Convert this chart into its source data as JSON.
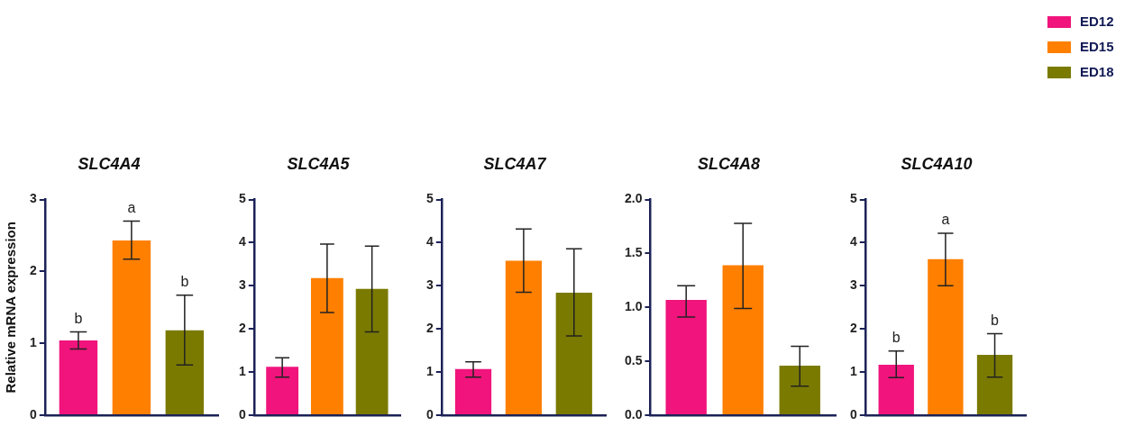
{
  "chart_data": [
    {
      "type": "bar",
      "title": "SLC4A4",
      "ylabel": "Relative mRNA expression",
      "categories": [
        null
      ],
      "ylim": [
        0,
        3
      ],
      "yticks": [
        0,
        1,
        2,
        3
      ],
      "grid": false,
      "annotations": [
        "b",
        "a",
        "b"
      ],
      "series": [
        {
          "color": "#f0147c",
          "values": [
            1.04
          ],
          "errors": [
            [
              0.92,
              1.16
            ]
          ]
        },
        {
          "color": "#ff7f00",
          "values": [
            2.43
          ],
          "errors": [
            [
              2.17,
              2.7
            ]
          ]
        },
        {
          "color": "#7a7a00",
          "values": [
            1.18
          ],
          "errors": [
            [
              0.7,
              1.67
            ]
          ]
        }
      ]
    },
    {
      "type": "bar",
      "title": "SLC4A5",
      "categories": [
        null
      ],
      "ylim": [
        0,
        5
      ],
      "yticks": [
        0,
        1,
        2,
        3,
        4,
        5
      ],
      "grid": false,
      "series": [
        {
          "color": "#f0147c",
          "values": [
            1.12
          ],
          "errors": [
            [
              0.88,
              1.33
            ]
          ]
        },
        {
          "color": "#ff7f00",
          "values": [
            3.18
          ],
          "errors": [
            [
              2.38,
              3.97
            ]
          ]
        },
        {
          "color": "#7a7a00",
          "values": [
            2.93
          ],
          "errors": [
            [
              1.93,
              3.92
            ]
          ]
        }
      ]
    },
    {
      "type": "bar",
      "title": "SLC4A7",
      "categories": [
        null
      ],
      "ylim": [
        0,
        5
      ],
      "yticks": [
        0,
        1,
        2,
        3,
        4,
        5
      ],
      "grid": false,
      "series": [
        {
          "color": "#f0147c",
          "values": [
            1.07
          ],
          "errors": [
            [
              0.88,
              1.24
            ]
          ]
        },
        {
          "color": "#ff7f00",
          "values": [
            3.58
          ],
          "errors": [
            [
              2.85,
              4.32
            ]
          ]
        },
        {
          "color": "#7a7a00",
          "values": [
            2.84
          ],
          "errors": [
            [
              1.84,
              3.86
            ]
          ]
        }
      ]
    },
    {
      "type": "bar",
      "title": "SLC4A8",
      "categories": [
        null
      ],
      "ylim": [
        0,
        2
      ],
      "yticks": [
        {
          "value": 0,
          "label": "0.0"
        },
        0.5,
        {
          "value": 1,
          "label": "1.0"
        },
        1.5,
        {
          "value": 2,
          "label": "2.0"
        }
      ],
      "grid": false,
      "series": [
        {
          "color": "#f0147c",
          "values": [
            1.07
          ],
          "errors": [
            [
              0.91,
              1.2
            ]
          ]
        },
        {
          "color": "#ff7f00",
          "values": [
            1.39
          ],
          "errors": [
            [
              0.99,
              1.78
            ]
          ]
        },
        {
          "color": "#7a7a00",
          "values": [
            0.46
          ],
          "errors": [
            [
              0.27,
              0.64
            ]
          ]
        }
      ]
    },
    {
      "type": "bar",
      "title": "SLC4A10",
      "categories": [
        null
      ],
      "ylim": [
        0,
        5
      ],
      "yticks": [
        0,
        1,
        2,
        3,
        4,
        5
      ],
      "grid": false,
      "legend": "top right",
      "annotations": [
        "b",
        "a",
        "b"
      ],
      "series": [
        {
          "name": "ED12",
          "color": "#f0147c",
          "values": [
            1.17
          ],
          "errors": [
            [
              0.87,
              1.49
            ]
          ]
        },
        {
          "name": "ED15",
          "color": "#ff7f00",
          "values": [
            3.62
          ],
          "errors": [
            [
              3.0,
              4.22
            ]
          ]
        },
        {
          "name": "ED18",
          "color": "#7a7a00",
          "values": [
            1.4
          ],
          "errors": [
            [
              0.88,
              1.89
            ]
          ]
        }
      ]
    }
  ]
}
